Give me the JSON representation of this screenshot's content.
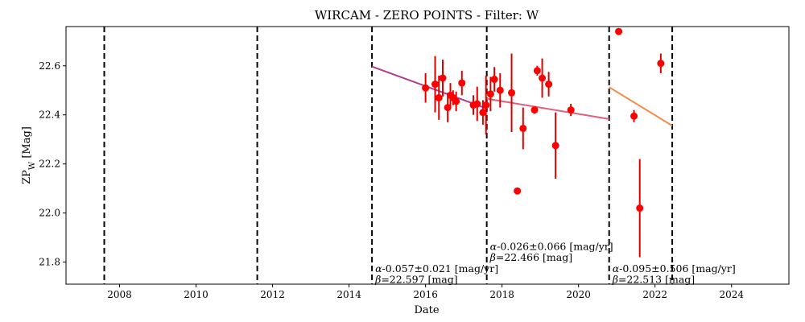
{
  "chart_data": {
    "type": "scatter",
    "title": "WIRCAM - ZERO POINTS - Filter: W",
    "xlabel": "Date",
    "ylabel_main": "ZP",
    "ylabel_sub": "W",
    "ylabel_unit": "[Mag]",
    "xlim": [
      2006.6,
      2025.5
    ],
    "ylim": [
      21.71,
      22.76
    ],
    "xticks": [
      2008,
      2010,
      2012,
      2014,
      2016,
      2018,
      2020,
      2022,
      2024
    ],
    "yticks": [
      21.8,
      22.0,
      22.2,
      22.4,
      22.6
    ],
    "ytick_labels": [
      "21.8",
      "22.0",
      "22.2",
      "22.4",
      "22.6"
    ],
    "grid": false,
    "marker_color": "#ff0000",
    "errorbar_color": "#dd0000",
    "points": [
      {
        "x": 2016.0,
        "y": 22.51,
        "err": 0.06
      },
      {
        "x": 2016.25,
        "y": 22.525,
        "err": 0.115
      },
      {
        "x": 2016.35,
        "y": 22.47,
        "err": 0.09
      },
      {
        "x": 2016.45,
        "y": 22.55,
        "err": 0.075
      },
      {
        "x": 2016.58,
        "y": 22.43,
        "err": 0.06
      },
      {
        "x": 2016.65,
        "y": 22.48,
        "err": 0.05
      },
      {
        "x": 2016.72,
        "y": 22.47,
        "err": 0.03
      },
      {
        "x": 2016.8,
        "y": 22.455,
        "err": 0.04
      },
      {
        "x": 2016.95,
        "y": 22.53,
        "err": 0.05
      },
      {
        "x": 2017.25,
        "y": 22.44,
        "err": 0.04
      },
      {
        "x": 2017.35,
        "y": 22.445,
        "err": 0.07
      },
      {
        "x": 2017.5,
        "y": 22.41,
        "err": 0.05
      },
      {
        "x": 2017.58,
        "y": 22.44,
        "err": 0.12
      },
      {
        "x": 2017.7,
        "y": 22.485,
        "err": 0.07
      },
      {
        "x": 2017.8,
        "y": 22.545,
        "err": 0.05
      },
      {
        "x": 2017.95,
        "y": 22.5,
        "err": 0.07
      },
      {
        "x": 2018.25,
        "y": 22.49,
        "err": 0.16
      },
      {
        "x": 2018.4,
        "y": 22.09,
        "err": 0.01
      },
      {
        "x": 2018.55,
        "y": 22.345,
        "err": 0.085
      },
      {
        "x": 2018.85,
        "y": 22.42,
        "err": 0.0
      },
      {
        "x": 2018.92,
        "y": 22.58,
        "err": 0.02
      },
      {
        "x": 2019.05,
        "y": 22.55,
        "err": 0.08
      },
      {
        "x": 2019.22,
        "y": 22.525,
        "err": 0.05
      },
      {
        "x": 2019.4,
        "y": 22.275,
        "err": 0.135
      },
      {
        "x": 2019.8,
        "y": 22.42,
        "err": 0.025
      },
      {
        "x": 2021.05,
        "y": 22.74,
        "err": 0.01
      },
      {
        "x": 2021.45,
        "y": 22.395,
        "err": 0.025
      },
      {
        "x": 2021.6,
        "y": 22.02,
        "err": 0.2
      },
      {
        "x": 2022.15,
        "y": 22.61,
        "err": 0.04
      }
    ],
    "vlines": [
      2007.6,
      2011.6,
      2014.6,
      2017.6,
      2020.8,
      2022.45
    ],
    "fits": [
      {
        "x": [
          2014.6,
          2017.6
        ],
        "y": [
          22.597,
          22.426
        ],
        "color": "#b13c8c"
      },
      {
        "x": [
          2017.6,
          2020.8
        ],
        "y": [
          22.466,
          22.383
        ],
        "color": "#e0607a"
      },
      {
        "x": [
          2020.8,
          2022.45
        ],
        "y": [
          22.513,
          22.356
        ],
        "color": "#f28c48"
      }
    ],
    "annotations": [
      {
        "x": 2014.6,
        "alpha": "-0.057±0.021 [mag/yr]",
        "beta": "=22.597 [mag]",
        "line1_y": 21.76,
        "line2_y": 21.715
      },
      {
        "x": 2017.6,
        "alpha": "-0.026±0.066 [mag/yr]",
        "beta": "=22.466 [mag]",
        "line1_y": 21.85,
        "line2_y": 21.805
      },
      {
        "x": 2020.8,
        "alpha": "-0.095±0.506 [mag/yr]",
        "beta": "=22.513 [mag]",
        "line1_y": 21.76,
        "line2_y": 21.715
      }
    ],
    "alpha_symbol": "α",
    "beta_symbol": "β"
  }
}
